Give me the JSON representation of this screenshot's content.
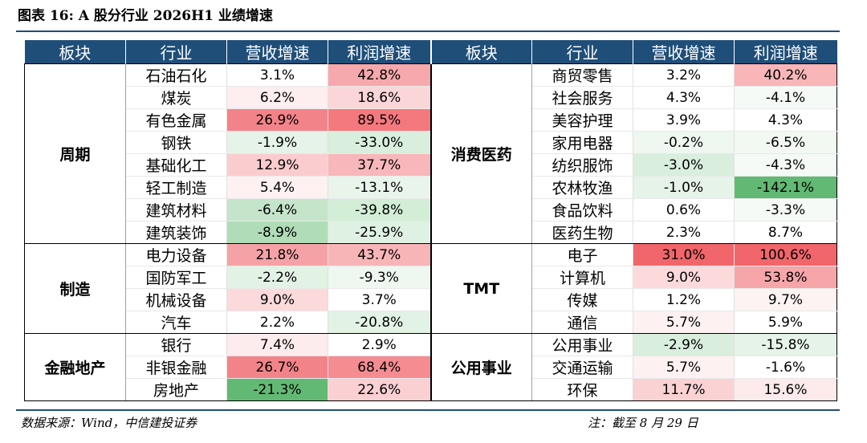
{
  "title": "图表 16: A 股分行业 2026H1 业绩增速",
  "headers": [
    "板块",
    "行业",
    "营收增速",
    "利润增速",
    "板块",
    "行业",
    "营收增速",
    "利润增速"
  ],
  "left_groups": [
    {
      "sector": "周期",
      "rows": [
        {
          "industry": "石油石化",
          "rev": "3.1%",
          "rev_bg": "#ffffff",
          "profit": "42.8%",
          "profit_bg": "#f6a9ad"
        },
        {
          "industry": "煤炭",
          "rev": "6.2%",
          "rev_bg": "#fdeeef",
          "profit": "18.6%",
          "profit_bg": "#fbd6d8"
        },
        {
          "industry": "有色金属",
          "rev": "26.9%",
          "rev_bg": "#f28489",
          "profit": "89.5%",
          "profit_bg": "#f4797e"
        },
        {
          "industry": "钢铁",
          "rev": "-1.9%",
          "rev_bg": "#e6f3e8",
          "profit": "-33.0%",
          "profit_bg": "#d9eedd"
        },
        {
          "industry": "基础化工",
          "rev": "12.9%",
          "rev_bg": "#fbccce",
          "profit": "37.7%",
          "profit_bg": "#f8b7ba"
        },
        {
          "industry": "轻工制造",
          "rev": "5.4%",
          "rev_bg": "#fef1f2",
          "profit": "-13.1%",
          "profit_bg": "#e9f5eb"
        },
        {
          "industry": "建筑材料",
          "rev": "-6.4%",
          "rev_bg": "#c5e5cb",
          "profit": "-39.8%",
          "profit_bg": "#d2eed7"
        },
        {
          "industry": "建筑装饰",
          "rev": "-8.9%",
          "rev_bg": "#b0dcb7",
          "profit": "-25.9%",
          "profit_bg": "#dff1e2"
        }
      ]
    },
    {
      "sector": "制造",
      "rows": [
        {
          "industry": "电力设备",
          "rev": "21.8%",
          "rev_bg": "#f5a2a6",
          "profit": "43.7%",
          "profit_bg": "#f8b5b8"
        },
        {
          "industry": "国防军工",
          "rev": "-2.2%",
          "rev_bg": "#e2f2e5",
          "profit": "-9.3%",
          "profit_bg": "#eef7f0"
        },
        {
          "industry": "机械设备",
          "rev": "9.0%",
          "rev_bg": "#fcdadc",
          "profit": "3.7%",
          "profit_bg": "#ffffff"
        },
        {
          "industry": "汽车",
          "rev": "2.2%",
          "rev_bg": "#ffffff",
          "profit": "-20.8%",
          "profit_bg": "#e2f2e5"
        }
      ]
    },
    {
      "sector": "金融地产",
      "rows": [
        {
          "industry": "银行",
          "rev": "7.4%",
          "rev_bg": "#fdeced",
          "profit": "2.9%",
          "profit_bg": "#ffffff"
        },
        {
          "industry": "非银金融",
          "rev": "26.7%",
          "rev_bg": "#f28489",
          "profit": "68.4%",
          "profit_bg": "#f58c91"
        },
        {
          "industry": "房地产",
          "rev": "-21.3%",
          "rev_bg": "#62b974",
          "profit": "22.6%",
          "profit_bg": "#fad0d3"
        }
      ]
    }
  ],
  "right_groups": [
    {
      "sector": "消费医药",
      "rows": [
        {
          "industry": "商贸零售",
          "rev": "3.2%",
          "rev_bg": "#ffffff",
          "profit": "40.2%",
          "profit_bg": "#f8b6b9"
        },
        {
          "industry": "社会服务",
          "rev": "4.3%",
          "rev_bg": "#ffffff",
          "profit": "-4.1%",
          "profit_bg": "#f5faf6"
        },
        {
          "industry": "美容护理",
          "rev": "3.9%",
          "rev_bg": "#ffffff",
          "profit": "4.3%",
          "profit_bg": "#ffffff"
        },
        {
          "industry": "家用电器",
          "rev": "-0.2%",
          "rev_bg": "#eef7f0",
          "profit": "-6.5%",
          "profit_bg": "#f2f9f3"
        },
        {
          "industry": "纺织服饰",
          "rev": "-3.0%",
          "rev_bg": "#d9eedd",
          "profit": "-4.3%",
          "profit_bg": "#f5faf6"
        },
        {
          "industry": "农林牧渔",
          "rev": "-1.0%",
          "rev_bg": "#e6f3e8",
          "profit": "-142.1%",
          "profit_bg": "#62b974"
        },
        {
          "industry": "食品饮料",
          "rev": "0.6%",
          "rev_bg": "#ffffff",
          "profit": "-3.3%",
          "profit_bg": "#f5faf6"
        },
        {
          "industry": "医药生物",
          "rev": "2.3%",
          "rev_bg": "#ffffff",
          "profit": "8.7%",
          "profit_bg": "#ffffff"
        }
      ]
    },
    {
      "sector": "TMT",
      "rows": [
        {
          "industry": "电子",
          "rev": "31.0%",
          "rev_bg": "#f0666b",
          "profit": "100.6%",
          "profit_bg": "#f0666b"
        },
        {
          "industry": "计算机",
          "rev": "9.0%",
          "rev_bg": "#fcdadc",
          "profit": "53.8%",
          "profit_bg": "#f6a5a9"
        },
        {
          "industry": "传媒",
          "rev": "1.2%",
          "rev_bg": "#ffffff",
          "profit": "9.7%",
          "profit_bg": "#fef3f3"
        },
        {
          "industry": "通信",
          "rev": "5.7%",
          "rev_bg": "#fef1f2",
          "profit": "5.9%",
          "profit_bg": "#ffffff"
        }
      ]
    },
    {
      "sector": "公用事业",
      "rows": [
        {
          "industry": "公用事业",
          "rev": "-2.9%",
          "rev_bg": "#d9eedd",
          "profit": "-15.8%",
          "profit_bg": "#e6f3e8"
        },
        {
          "industry": "交通运输",
          "rev": "5.7%",
          "rev_bg": "#fef1f2",
          "profit": "-1.6%",
          "profit_bg": "#ffffff"
        },
        {
          "industry": "环保",
          "rev": "11.7%",
          "rev_bg": "#fbd2d4",
          "profit": "15.6%",
          "profit_bg": "#fdeaeb"
        }
      ]
    }
  ],
  "source": "数据来源：Wind，中信建投证券",
  "note": "注：截至 8 月 29 日"
}
